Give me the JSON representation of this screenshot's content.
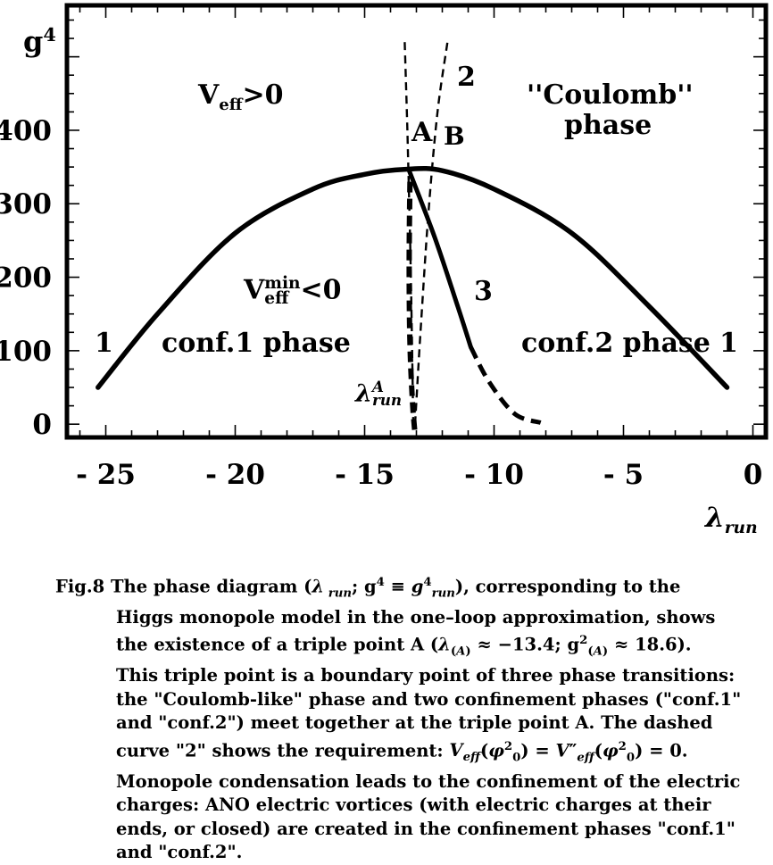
{
  "chart_data": {
    "type": "line",
    "x_label_html": "λ<sub>run</sub>",
    "y_label_html": "g<sup>4</sup>",
    "x_ticks": [
      "- 25",
      "- 20",
      "- 15",
      "- 10",
      "- 5",
      "0"
    ],
    "y_ticks": [
      "0",
      "100",
      "200",
      "300",
      "400"
    ],
    "xlim": [
      -26.5,
      0.5
    ],
    "ylim": [
      -18,
      570
    ],
    "series": [
      {
        "name": "1",
        "style": "solid",
        "x": [
          -25.3,
          -23,
          -20,
          -17,
          -15,
          -13.4,
          -12,
          -10,
          -7,
          -4,
          -1
        ],
        "y": [
          50,
          150,
          260,
          320,
          340,
          347,
          345,
          320,
          260,
          160,
          50
        ]
      },
      {
        "name": "3",
        "style": "solid",
        "x": [
          -13.3,
          -12.3,
          -11.4,
          -10.9
        ],
        "y": [
          347,
          255,
          160,
          105
        ]
      },
      {
        "name": "3",
        "style": "dashed",
        "x": [
          -10.9,
          -10.2,
          -9.2,
          -8.2
        ],
        "y": [
          105,
          58,
          14,
          2
        ]
      },
      {
        "name": "2",
        "style": "dashed",
        "x": [
          -13.45,
          -13.1,
          -12.7,
          -12.2,
          -11.8
        ],
        "y": [
          395,
          80,
          200,
          330,
          400
        ]
      }
    ],
    "annotations": {
      "veff_pos_html": "V<sub>eff</sub>&gt;0",
      "coulomb_1": "''Coulomb''",
      "coulomb_2": "phase",
      "veff_min_html": "V<span class=\"supsub\"><sup>min</sup><sub>eff</sub></span>&lt;0",
      "conf1": "conf.1 phase",
      "conf2": "conf.2 phase",
      "label_1_left": "1",
      "label_1_right": "1",
      "label_2": "2",
      "label_3": "3",
      "point_A": "A",
      "point_B": "B",
      "lambda_A_html": "λ<sup>A</sup><sub>run</sub>"
    }
  },
  "caption": {
    "lines": [
      "Fig.8 The phase diagram (<i>λ</i><sub> <i>run</i></sub>; g<sup>4</sup> ≡ <i>g</i><sup>4</sup><sub><i>run</i></sub>), corresponding to the",
      "Higgs monopole model in the one–loop approximation, shows",
      "the existence of a triple point A (<i>λ</i><sub>(<i>A</i>)</sub> ≈ −13.4; g<sup>2</sup><sub>(<i>A</i>)</sub> ≈ 18.6).",
      "This triple point is a boundary point of three phase transitions:",
      "the \"Coulomb-like\" phase and two confinement phases (\"conf.1\"",
      "and \"conf.2\") meet together at the triple point A. The dashed",
      "curve \"2\" shows the requirement: <i>V<sub>eff</sub></i>(<i>φ</i><sup>2</sup><sub>0</sub>) = <i>V</i>″<sub><i>eff</i></sub>(<i>φ</i><sup>2</sup><sub>0</sub>) = 0.",
      "Monopole condensation leads to the confinement of the electric",
      "charges: ANO electric vortices (with electric charges at their",
      "ends, or closed) are created in the confinement phases \"conf.1\"",
      "and \"conf.2\"."
    ]
  }
}
